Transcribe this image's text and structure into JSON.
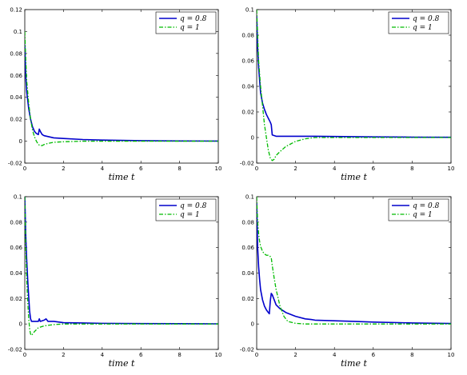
{
  "figure": {
    "background": "#ffffff"
  },
  "chart_data": [
    {
      "type": "line",
      "title": "",
      "xlabel": "time t",
      "ylabel": "",
      "xlim": [
        0,
        10
      ],
      "ylim": [
        -0.02,
        0.12
      ],
      "xticks": [
        "0",
        "2",
        "4",
        "6",
        "8",
        "10"
      ],
      "yticks": [
        "-0.02",
        "0",
        "0.02",
        "0.04",
        "0.06",
        "0.08",
        "0.1",
        "0.12"
      ],
      "legend": {
        "position": "top-right"
      },
      "series": [
        {
          "name": "q = 0.8",
          "color": "#0000cc",
          "style": "solid",
          "x": [
            0,
            0.05,
            0.1,
            0.2,
            0.3,
            0.4,
            0.5,
            0.6,
            0.7,
            0.75,
            0.8,
            0.9,
            1.0,
            1.5,
            2,
            3,
            4,
            6,
            8,
            10
          ],
          "y": [
            0.088,
            0.06,
            0.045,
            0.03,
            0.02,
            0.013,
            0.009,
            0.007,
            0.006,
            0.011,
            0.009,
            0.006,
            0.005,
            0.003,
            0.0025,
            0.0015,
            0.001,
            0.0005,
            0.0002,
            0.0001
          ]
        },
        {
          "name": "q = 1",
          "color": "#00bb00",
          "style": "dashdot",
          "x": [
            0,
            0.05,
            0.1,
            0.2,
            0.3,
            0.4,
            0.5,
            0.6,
            0.7,
            0.8,
            0.9,
            1.0,
            1.2,
            1.5,
            2,
            3,
            4,
            6,
            8,
            10
          ],
          "y": [
            0.1,
            0.075,
            0.055,
            0.035,
            0.02,
            0.01,
            0.004,
            0.0,
            -0.003,
            -0.004,
            -0.004,
            -0.003,
            -0.002,
            -0.001,
            -0.0005,
            0,
            0,
            0,
            0,
            0
          ]
        }
      ]
    },
    {
      "type": "line",
      "title": "",
      "xlabel": "time t",
      "ylabel": "",
      "xlim": [
        0,
        10
      ],
      "ylim": [
        -0.02,
        0.1
      ],
      "xticks": [
        "0",
        "2",
        "4",
        "6",
        "8",
        "10"
      ],
      "yticks": [
        "-0.02",
        "0",
        "0.02",
        "0.04",
        "0.06",
        "0.08",
        "0.1"
      ],
      "legend": {
        "position": "top-right"
      },
      "series": [
        {
          "name": "q = 0.8",
          "color": "#0000cc",
          "style": "solid",
          "x": [
            0,
            0.05,
            0.1,
            0.2,
            0.3,
            0.4,
            0.5,
            0.6,
            0.7,
            0.75,
            0.8,
            1.0,
            1.5,
            2,
            3,
            4,
            6,
            8,
            10
          ],
          "y": [
            0.095,
            0.07,
            0.055,
            0.035,
            0.027,
            0.022,
            0.018,
            0.015,
            0.012,
            0.01,
            0.002,
            0.001,
            0.001,
            0.001,
            0.001,
            0.0008,
            0.0005,
            0.0003,
            0.0002
          ]
        },
        {
          "name": "q = 1",
          "color": "#00bb00",
          "style": "dashdot",
          "x": [
            0,
            0.05,
            0.1,
            0.2,
            0.3,
            0.4,
            0.5,
            0.6,
            0.7,
            0.8,
            0.9,
            1.0,
            1.2,
            1.5,
            2,
            2.5,
            3,
            4,
            6,
            8,
            10
          ],
          "y": [
            0.1,
            0.08,
            0.06,
            0.04,
            0.025,
            0.01,
            0.0,
            -0.01,
            -0.016,
            -0.018,
            -0.017,
            -0.014,
            -0.011,
            -0.007,
            -0.003,
            -0.001,
            0,
            0,
            0,
            0,
            0
          ]
        }
      ]
    },
    {
      "type": "line",
      "title": "",
      "xlabel": "time t",
      "ylabel": "",
      "xlim": [
        0,
        10
      ],
      "ylim": [
        -0.02,
        0.1
      ],
      "xticks": [
        "0",
        "2",
        "4",
        "6",
        "8",
        "10"
      ],
      "yticks": [
        "-0.02",
        "0",
        "0.02",
        "0.04",
        "0.06",
        "0.08",
        "0.1"
      ],
      "legend": {
        "position": "top-right"
      },
      "series": [
        {
          "name": "q = 0.8",
          "color": "#0000cc",
          "style": "solid",
          "x": [
            0,
            0.05,
            0.1,
            0.15,
            0.2,
            0.25,
            0.3,
            0.35,
            0.5,
            0.7,
            0.75,
            0.8,
            1.0,
            1.1,
            1.2,
            1.5,
            2,
            3,
            4,
            6,
            8,
            10
          ],
          "y": [
            0.1,
            0.07,
            0.05,
            0.035,
            0.022,
            0.01,
            0.004,
            0.002,
            0.002,
            0.002,
            0.004,
            0.002,
            0.003,
            0.004,
            0.002,
            0.002,
            0.001,
            0.0008,
            0.0005,
            0.0003,
            0.0002,
            0.0001
          ]
        },
        {
          "name": "q = 1",
          "color": "#00bb00",
          "style": "dashdot",
          "x": [
            0,
            0.05,
            0.1,
            0.15,
            0.2,
            0.25,
            0.3,
            0.35,
            0.4,
            0.5,
            0.7,
            1.0,
            1.5,
            2,
            3,
            4,
            6,
            8,
            10
          ],
          "y": [
            0.1,
            0.06,
            0.035,
            0.018,
            0.005,
            -0.004,
            -0.008,
            -0.009,
            -0.008,
            -0.006,
            -0.003,
            -0.0015,
            -0.0005,
            0,
            0,
            0,
            0,
            0,
            0
          ]
        }
      ]
    },
    {
      "type": "line",
      "title": "",
      "xlabel": "time t",
      "ylabel": "",
      "xlim": [
        0,
        10
      ],
      "ylim": [
        -0.02,
        0.1
      ],
      "xticks": [
        "0",
        "2",
        "4",
        "6",
        "8",
        "10"
      ],
      "yticks": [
        "-0.02",
        "0",
        "0.02",
        "0.04",
        "0.06",
        "0.08",
        "0.1"
      ],
      "legend": {
        "position": "top-right"
      },
      "series": [
        {
          "name": "q = 0.8",
          "color": "#0000cc",
          "style": "solid",
          "x": [
            0,
            0.05,
            0.1,
            0.15,
            0.2,
            0.3,
            0.4,
            0.5,
            0.6,
            0.65,
            0.7,
            0.75,
            0.8,
            0.9,
            1.0,
            1.2,
            1.5,
            2,
            2.5,
            2.8,
            3,
            4,
            5,
            6,
            8,
            10
          ],
          "y": [
            0.095,
            0.06,
            0.045,
            0.035,
            0.027,
            0.019,
            0.014,
            0.011,
            0.009,
            0.008,
            0.018,
            0.024,
            0.023,
            0.019,
            0.015,
            0.012,
            0.009,
            0.006,
            0.004,
            0.0035,
            0.003,
            0.0025,
            0.002,
            0.0015,
            0.0008,
            0.0004
          ]
        },
        {
          "name": "q = 1",
          "color": "#00bb00",
          "style": "dashdot",
          "x": [
            0,
            0.05,
            0.1,
            0.15,
            0.2,
            0.3,
            0.4,
            0.5,
            0.6,
            0.7,
            0.75,
            0.8,
            0.9,
            1.0,
            1.2,
            1.4,
            1.6,
            2,
            2.5,
            3,
            4,
            6,
            8,
            10
          ],
          "y": [
            0.1,
            0.08,
            0.071,
            0.065,
            0.061,
            0.057,
            0.055,
            0.054,
            0.054,
            0.053,
            0.052,
            0.046,
            0.036,
            0.027,
            0.014,
            0.006,
            0.002,
            0.0005,
            0,
            0,
            0,
            0,
            0,
            0
          ]
        }
      ]
    }
  ]
}
